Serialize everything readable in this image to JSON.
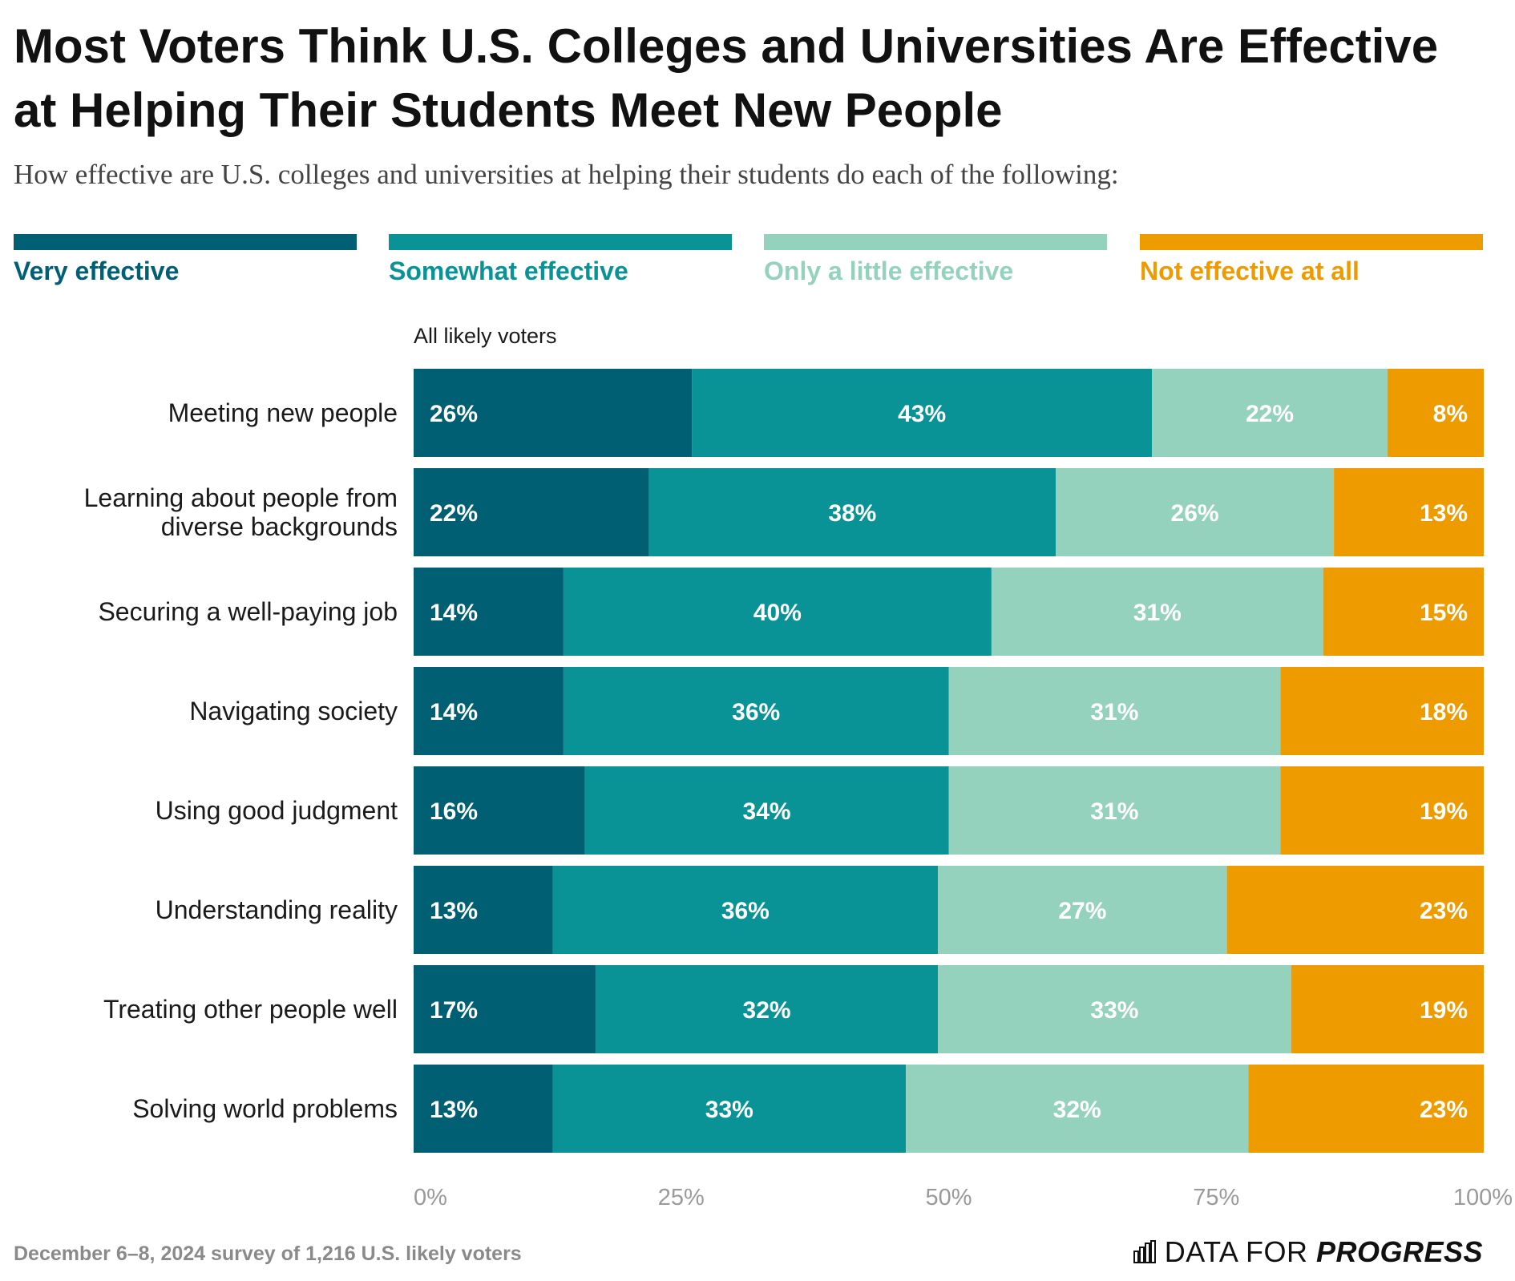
{
  "title": "Most Voters Think U.S. Colleges and Universities Are Effective at Helping Their Students Meet New People",
  "subtitle": "How effective are U.S. colleges and universities at helping their students do each of the following:",
  "group_label": "All likely voters",
  "legend": [
    {
      "label": "Very effective",
      "color": "#005f73"
    },
    {
      "label": "Somewhat effective",
      "color": "#0a9396"
    },
    {
      "label": "Only a little effective",
      "color": "#94d2bd"
    },
    {
      "label": "Not effective at all",
      "color": "#ee9b00"
    }
  ],
  "footer": {
    "note": "December 6–8, 2024 survey of 1,216 U.S. likely voters",
    "brand_light": "DATA FOR ",
    "brand_bold": "PROGRESS"
  },
  "chart_data": {
    "type": "bar",
    "orientation": "horizontal",
    "stacked": true,
    "categories": [
      "Meeting new people",
      "Learning about people from diverse backgrounds",
      "Securing a well-paying job",
      "Navigating society",
      "Using good judgment",
      "Understanding reality",
      "Treating other people well",
      "Solving world problems"
    ],
    "series": [
      {
        "name": "Very effective",
        "color": "#005f73",
        "values": [
          26,
          22,
          14,
          14,
          16,
          13,
          17,
          13
        ]
      },
      {
        "name": "Somewhat effective",
        "color": "#0a9396",
        "values": [
          43,
          38,
          40,
          36,
          34,
          36,
          32,
          33
        ]
      },
      {
        "name": "Only a little effective",
        "color": "#94d2bd",
        "values": [
          22,
          26,
          31,
          31,
          31,
          27,
          33,
          32
        ]
      },
      {
        "name": "Not effective at all",
        "color": "#ee9b00",
        "values": [
          8,
          13,
          15,
          18,
          19,
          23,
          19,
          23
        ]
      }
    ],
    "xlim": [
      0,
      100
    ],
    "x_ticks": [
      "0%",
      "25%",
      "50%",
      "75%",
      "100%"
    ],
    "value_suffix": "%"
  }
}
